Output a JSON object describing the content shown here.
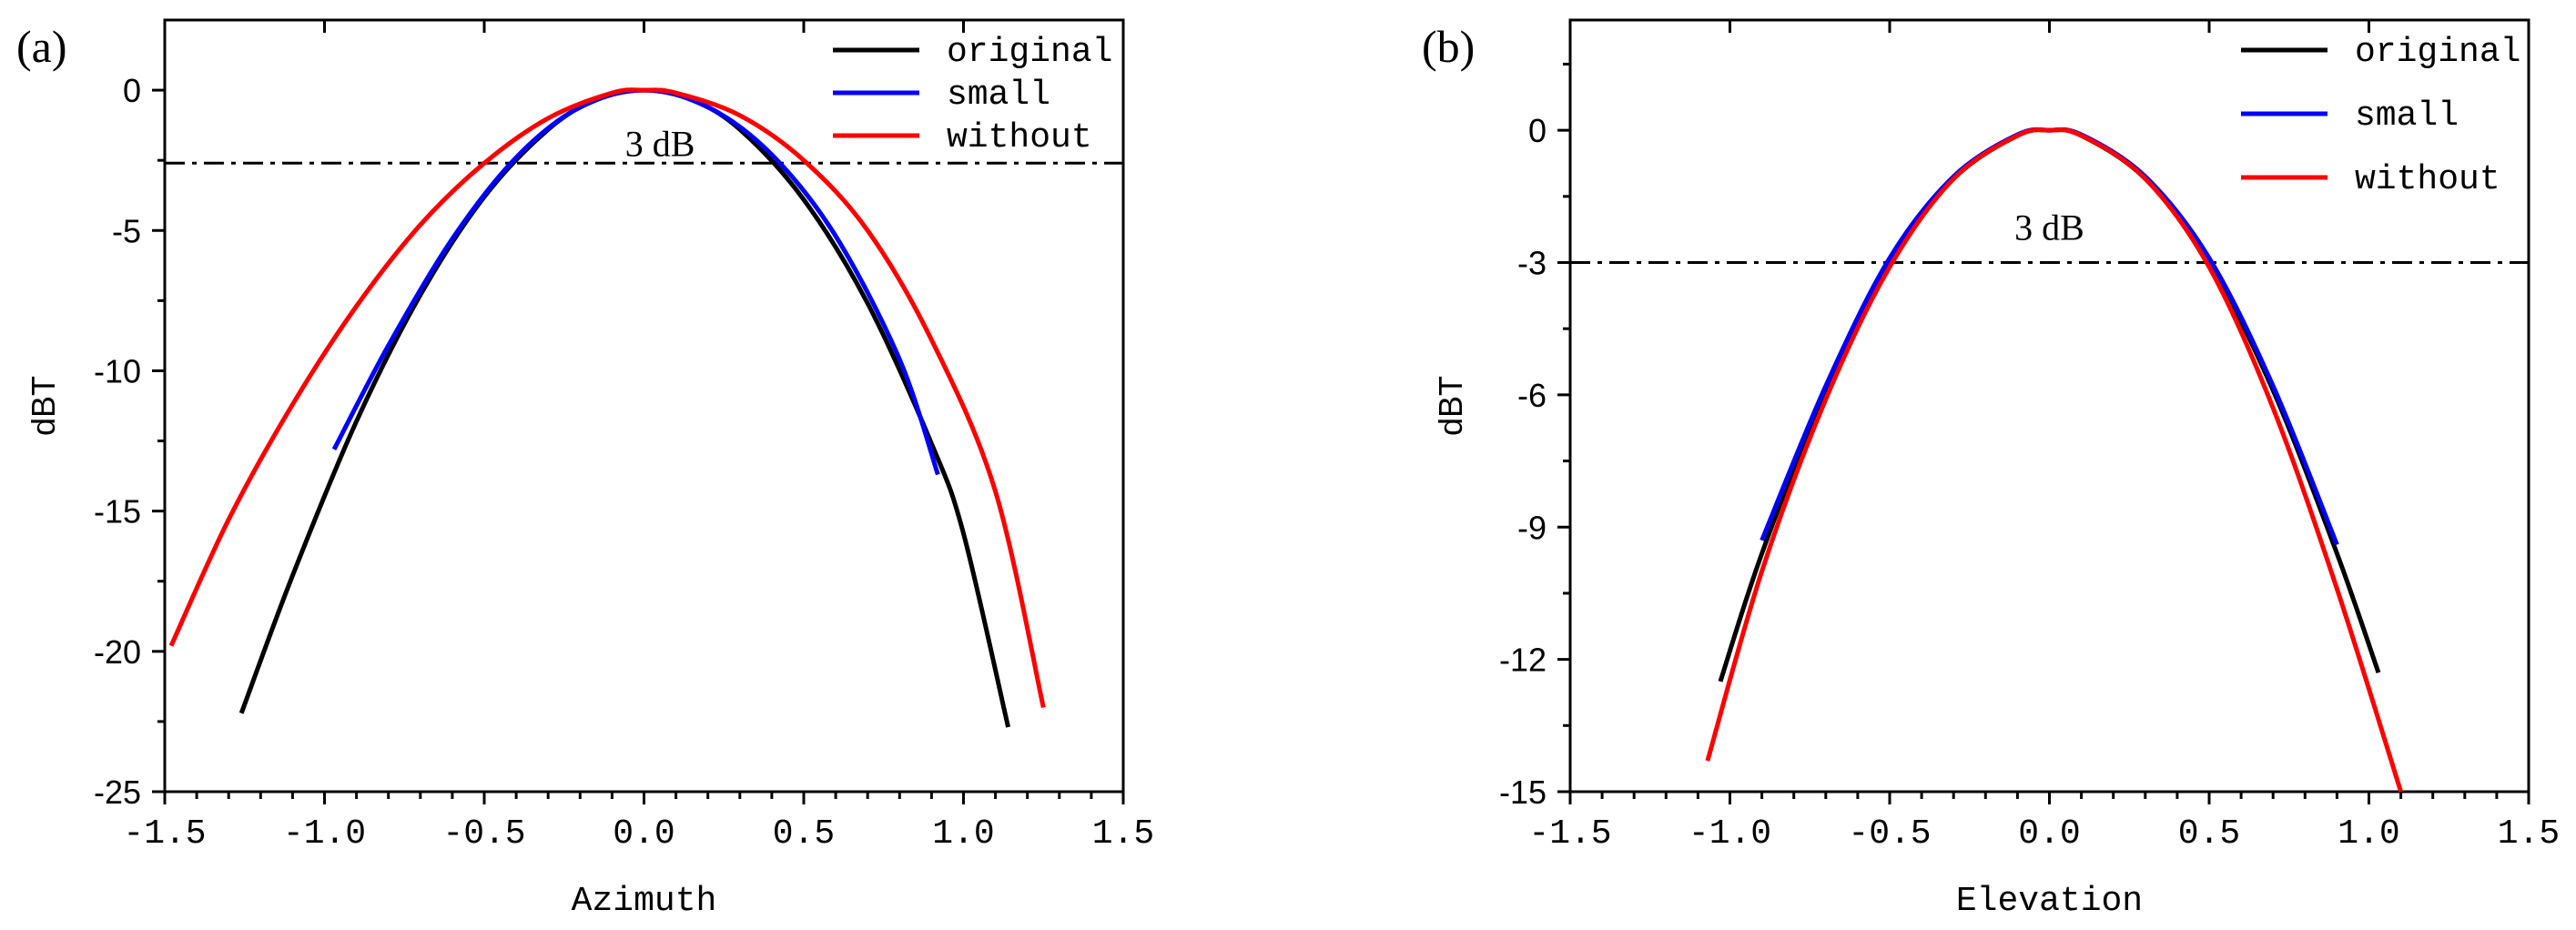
{
  "chart_data": [
    {
      "type": "line",
      "panel_label": "(a)",
      "xlabel": "Azimuth",
      "ylabel": "dBT",
      "xlim": [
        -1.5,
        1.5
      ],
      "ylim": [
        -25,
        2.5
      ],
      "xticks": [
        -1.5,
        -1.0,
        -0.5,
        0.0,
        0.5,
        1.0,
        1.5
      ],
      "xtick_labels": [
        "-1.5",
        "-1.0",
        "-0.5",
        "0.0",
        "0.5",
        "1.0",
        "1.5"
      ],
      "yticks": [
        0,
        -5,
        -10,
        -15,
        -20,
        -25
      ],
      "ytick_labels": [
        "0",
        "-5",
        "-10",
        "-15",
        "-20",
        "-25"
      ],
      "reference_line": {
        "y": -2.6,
        "label": "3 dB",
        "label_x": 0.05,
        "label_y": -1.9
      },
      "legend": [
        "original",
        "small",
        "without"
      ],
      "series": [
        {
          "name": "original",
          "color": "#000000",
          "x": [
            -1.26,
            -1.1,
            -0.9,
            -0.7,
            -0.5,
            -0.3,
            -0.15,
            0.0,
            0.15,
            0.3,
            0.5,
            0.7,
            0.9,
            1.0,
            1.14
          ],
          "y": [
            -22.2,
            -17.3,
            -11.8,
            -7.3,
            -3.8,
            -1.4,
            -0.35,
            0.0,
            -0.35,
            -1.4,
            -3.9,
            -7.6,
            -12.6,
            -15.8,
            -22.7
          ]
        },
        {
          "name": "small",
          "color": "#0000ff",
          "x": [
            -0.97,
            -0.8,
            -0.6,
            -0.4,
            -0.2,
            0.0,
            0.2,
            0.4,
            0.6,
            0.8,
            0.92
          ],
          "y": [
            -12.8,
            -9.1,
            -5.3,
            -2.4,
            -0.6,
            0.0,
            -0.6,
            -2.3,
            -5.2,
            -9.6,
            -13.7
          ]
        },
        {
          "name": "without",
          "color": "#ff0000",
          "x": [
            -1.48,
            -1.3,
            -1.1,
            -0.9,
            -0.7,
            -0.5,
            -0.3,
            -0.1,
            0.0,
            0.1,
            0.3,
            0.5,
            0.7,
            0.9,
            1.1,
            1.25
          ],
          "y": [
            -19.8,
            -15.3,
            -11.2,
            -7.7,
            -4.8,
            -2.6,
            -1.0,
            -0.1,
            0.0,
            -0.1,
            -0.9,
            -2.5,
            -5.0,
            -8.9,
            -14.3,
            -22.0
          ]
        }
      ]
    },
    {
      "type": "line",
      "panel_label": "(b)",
      "xlabel": "Elevation",
      "ylabel": "dBT",
      "xlim": [
        -1.5,
        1.5
      ],
      "ylim": [
        -15,
        2.5
      ],
      "xticks": [
        -1.5,
        -1.0,
        -0.5,
        0.0,
        0.5,
        1.0,
        1.5
      ],
      "xtick_labels": [
        "-1.5",
        "-1.0",
        "-0.5",
        "0.0",
        "0.5",
        "1.0",
        "1.5"
      ],
      "yticks": [
        0,
        -3,
        -6,
        -9,
        -12,
        -15
      ],
      "ytick_labels": [
        "0",
        "-3",
        "-6",
        "-9",
        "-12",
        "-15"
      ],
      "reference_line": {
        "y": -3,
        "label": "3 dB",
        "label_x": 0.0,
        "label_y": -2.2
      },
      "legend": [
        "original",
        "small",
        "without"
      ],
      "series": [
        {
          "name": "original",
          "color": "#000000",
          "x": [
            -1.03,
            -0.9,
            -0.7,
            -0.5,
            -0.3,
            -0.1,
            0.0,
            0.1,
            0.3,
            0.5,
            0.7,
            0.9,
            1.03
          ],
          "y": [
            -12.5,
            -9.6,
            -5.9,
            -3.0,
            -1.1,
            -0.12,
            0.0,
            -0.12,
            -1.1,
            -3.0,
            -5.9,
            -9.6,
            -12.3
          ]
        },
        {
          "name": "small",
          "color": "#0000ff",
          "x": [
            -0.9,
            -0.7,
            -0.5,
            -0.3,
            -0.1,
            0.0,
            0.1,
            0.3,
            0.5,
            0.7,
            0.9
          ],
          "y": [
            -9.3,
            -5.8,
            -2.9,
            -1.05,
            -0.1,
            0.0,
            -0.1,
            -1.05,
            -2.9,
            -5.8,
            -9.4
          ]
        },
        {
          "name": "without",
          "color": "#ff0000",
          "x": [
            -1.07,
            -0.9,
            -0.7,
            -0.5,
            -0.3,
            -0.1,
            0.0,
            0.1,
            0.3,
            0.5,
            0.7,
            0.9,
            1.1
          ],
          "y": [
            -14.3,
            -10.0,
            -6.1,
            -3.1,
            -1.1,
            -0.12,
            0.0,
            -0.12,
            -1.1,
            -3.1,
            -6.3,
            -10.4,
            -15.0
          ]
        }
      ]
    }
  ]
}
